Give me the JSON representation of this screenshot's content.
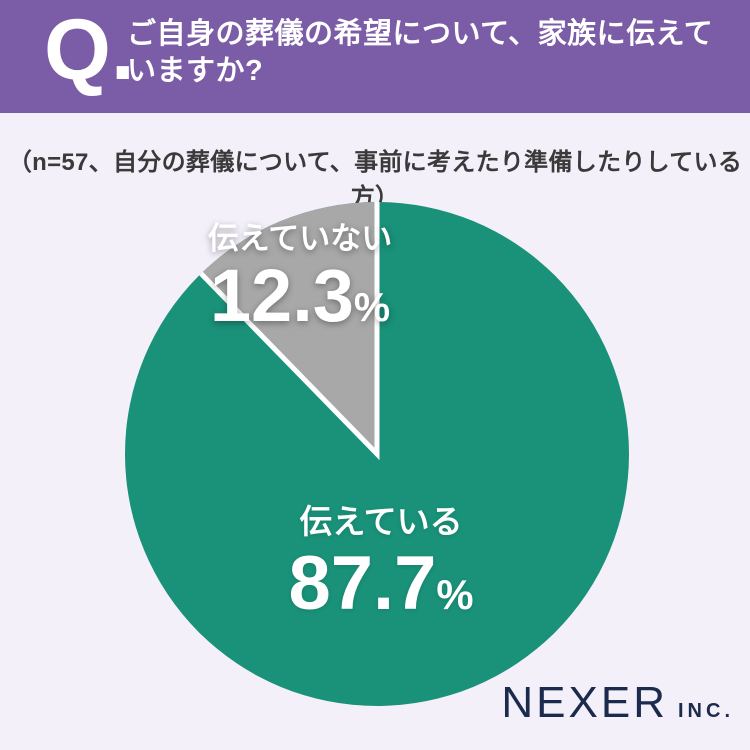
{
  "header": {
    "q_label": "Q.",
    "question_lines": [
      "ご自身の葬儀の希望について、家族に伝えて",
      "いますか?"
    ]
  },
  "subtitle": {
    "text": "（n=57、自分の葬儀について、事前に考えたり準備したりしている方）"
  },
  "chart_data": {
    "type": "pie",
    "title": "ご自身の葬儀の希望について、家族に伝えていますか?",
    "note": "（n=57、自分の葬儀について、事前に考えたり準備したりしている方）",
    "categories": [
      "伝えている",
      "伝えていない"
    ],
    "values": [
      87.7,
      12.3
    ],
    "unit": "%",
    "colors": [
      "#1a9179",
      "#a8a8a8"
    ],
    "start_angle_deg": 0,
    "direction": "clockwise",
    "divider_color": "#ffffff",
    "legend_position": "none",
    "labels_on_slices": true
  },
  "footer": {
    "brand": "NEXER",
    "brand_suffix": "INC."
  },
  "colors": {
    "header_bg": "#7b5ca6",
    "page_bg": "#f4f0fa",
    "note_text": "#3a3a3a",
    "label_text": "#ffffff",
    "logo_text": "#1c2b4d"
  }
}
